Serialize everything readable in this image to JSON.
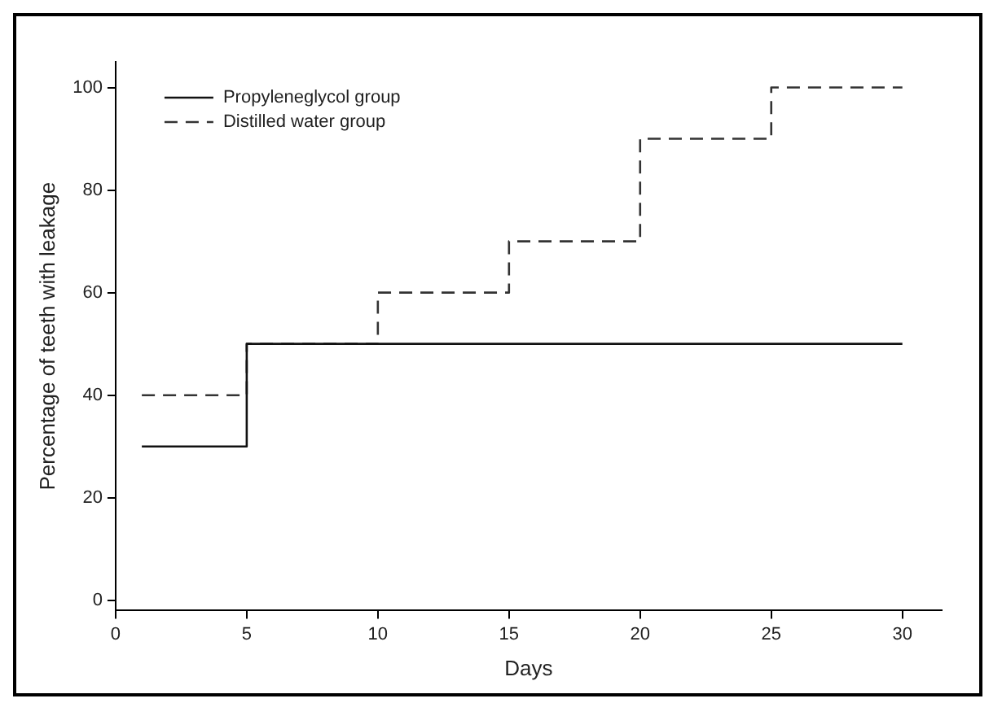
{
  "chart_data": {
    "type": "step",
    "xlabel": "Days",
    "ylabel": "Percentage of teeth with leakage",
    "xlim": [
      0,
      31.5
    ],
    "xticks": [
      0,
      5,
      10,
      15,
      20,
      25,
      30
    ],
    "ylim": [
      -2,
      105
    ],
    "yticks": [
      0,
      20,
      40,
      60,
      80,
      100
    ],
    "grid": false,
    "legend": "top left",
    "marker": "none",
    "series": [
      {
        "name": "Propyleneglycol group",
        "color": "#111111",
        "line_style": "solid",
        "x": [
          1,
          5,
          30
        ],
        "values": [
          30,
          50,
          50
        ]
      },
      {
        "name": "Distilled water group",
        "color": "#333333",
        "line_style": "dashed",
        "x": [
          1,
          5,
          10,
          15,
          20,
          25,
          30
        ],
        "values": [
          40,
          50,
          60,
          70,
          90,
          100,
          100
        ]
      }
    ]
  }
}
